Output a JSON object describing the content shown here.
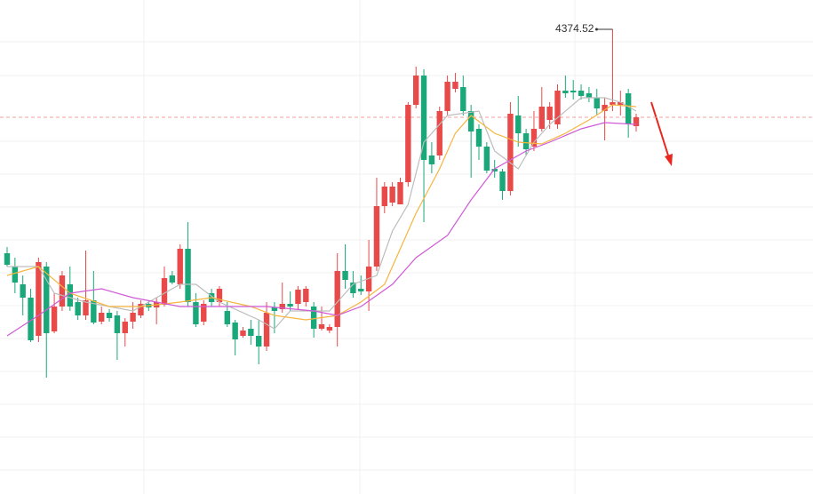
{
  "chart_data": {
    "type": "candlestick",
    "ylim": [
      4113,
      4391
    ],
    "up_color": "#e84a4a",
    "down_color": "#1aa87a",
    "ohlc": [
      [
        4248.5,
        4252,
        4241,
        4242
      ],
      [
        4241,
        4246,
        4226,
        4232
      ],
      [
        4231,
        4236,
        4213.5,
        4223.5
      ],
      [
        4223.5,
        4228.5,
        4198.5,
        4199.5
      ],
      [
        4202,
        4246,
        4198.5,
        4243.5
      ],
      [
        4241,
        4243.5,
        4178.5,
        4203.5
      ],
      [
        4204.5,
        4226,
        4203.5,
        4218.5
      ],
      [
        4218.5,
        4238.5,
        4216,
        4236
      ],
      [
        4231,
        4241,
        4216,
        4218.5
      ],
      [
        4221,
        4223.5,
        4211,
        4213.5
      ],
      [
        4213.5,
        4250,
        4211,
        4222
      ],
      [
        4222,
        4238.5,
        4208.5,
        4209.5
      ],
      [
        4210,
        4218.5,
        4208.5,
        4215
      ],
      [
        4215,
        4217,
        4210,
        4212
      ],
      [
        4213.5,
        4216,
        4188.5,
        4203.5
      ],
      [
        4203.5,
        4212,
        4196,
        4210
      ],
      [
        4210,
        4221,
        4206,
        4215
      ],
      [
        4213.5,
        4222,
        4212,
        4220
      ],
      [
        4220,
        4222,
        4216,
        4218
      ],
      [
        4218,
        4223.5,
        4208.5,
        4221
      ],
      [
        4219.5,
        4241,
        4218.5,
        4234.5
      ],
      [
        4236,
        4238.5,
        4231,
        4232
      ],
      [
        4231,
        4253.5,
        4228.5,
        4251
      ],
      [
        4251,
        4266,
        4218.5,
        4221
      ],
      [
        4221,
        4226,
        4207,
        4208.5
      ],
      [
        4210,
        4222,
        4208,
        4220
      ],
      [
        4226,
        4228.5,
        4218.5,
        4221
      ],
      [
        4221,
        4230,
        4218.5,
        4228.5
      ],
      [
        4216,
        4221,
        4207,
        4208.5
      ],
      [
        4209.5,
        4211,
        4191,
        4200
      ],
      [
        4202,
        4207,
        4201,
        4205
      ],
      [
        4206,
        4211,
        4197,
        4202
      ],
      [
        4202,
        4211,
        4186,
        4196
      ],
      [
        4196,
        4221,
        4193.5,
        4215
      ],
      [
        4218,
        4221,
        4203.5,
        4216
      ],
      [
        4217,
        4232,
        4215,
        4220
      ],
      [
        4220,
        4227,
        4216,
        4218.5
      ],
      [
        4220,
        4230,
        4217,
        4228
      ],
      [
        4221,
        4230,
        4218.5,
        4228.5
      ],
      [
        4218.5,
        4221,
        4201,
        4206
      ],
      [
        4206,
        4218.5,
        4205,
        4208.5
      ],
      [
        4205,
        4208.5,
        4203.5,
        4207
      ],
      [
        4207,
        4248.5,
        4196,
        4238.5
      ],
      [
        4238.5,
        4253.5,
        4228.5,
        4233.5
      ],
      [
        4232,
        4238.5,
        4223.5,
        4226
      ],
      [
        4228.5,
        4236,
        4225,
        4227
      ],
      [
        4227,
        4256,
        4216,
        4241
      ],
      [
        4241,
        4291,
        4238.5,
        4275
      ],
      [
        4275,
        4288.5,
        4271,
        4286
      ],
      [
        4277,
        4288.5,
        4275,
        4286
      ],
      [
        4276,
        4291,
        4276,
        4288.5
      ],
      [
        4288.5,
        4333.5,
        4286,
        4332
      ],
      [
        4332,
        4353.5,
        4330,
        4348.5
      ],
      [
        4348.5,
        4352,
        4266,
        4301
      ],
      [
        4303.5,
        4311,
        4293.5,
        4298.5
      ],
      [
        4303.5,
        4331,
        4301,
        4328.5
      ],
      [
        4328.5,
        4348.5,
        4326,
        4345
      ],
      [
        4341,
        4350,
        4339,
        4345
      ],
      [
        4342,
        4348.5,
        4326,
        4328.5
      ],
      [
        4328.5,
        4332,
        4291,
        4317
      ],
      [
        4318.5,
        4321,
        4301,
        4308.5
      ],
      [
        4308.5,
        4311,
        4293.5,
        4295
      ],
      [
        4296,
        4301,
        4291,
        4294.5
      ],
      [
        4294.5,
        4296,
        4278.5,
        4283.5
      ],
      [
        4283.5,
        4333.5,
        4281,
        4327
      ],
      [
        4326,
        4337,
        4308.5,
        4316
      ],
      [
        4316,
        4318.5,
        4303.5,
        4307
      ],
      [
        4308.5,
        4328.5,
        4306,
        4318.5
      ],
      [
        4318.5,
        4342,
        4317,
        4331
      ],
      [
        4323.5,
        4333.5,
        4318.5,
        4331
      ],
      [
        4321,
        4343.5,
        4318.5,
        4340
      ],
      [
        4340,
        4348.5,
        4336,
        4338.5
      ],
      [
        4340,
        4346,
        4335,
        4339
      ],
      [
        4340,
        4343.5,
        4335,
        4337
      ],
      [
        4338.5,
        4342,
        4333.5,
        4336
      ],
      [
        4336,
        4341,
        4326,
        4330
      ],
      [
        4328.5,
        4336,
        4312,
        4332
      ],
      [
        4332,
        4374.52,
        4328.5,
        4333.5
      ],
      [
        4332,
        4340,
        4326,
        4333.5
      ],
      [
        4338.5,
        4341,
        4313.5,
        4321
      ],
      [
        4320,
        4327,
        4317,
        4325
      ]
    ],
    "lines": [
      {
        "color": "#bdbdbd",
        "x": [
          0,
          4,
          6,
          10,
          16,
          22,
          24,
          27,
          32,
          34,
          36,
          41,
          44,
          47,
          49,
          51,
          53,
          56,
          60,
          62,
          65,
          67,
          69,
          73,
          76,
          78,
          80
        ],
        "values": [
          4241,
          4241,
          4226,
          4221,
          4216,
          4231,
          4231,
          4221,
          4211,
          4206,
          4216,
          4216,
          4231,
          4236,
          4261,
          4276,
          4311,
          4326,
          4328.5,
          4306,
          4296,
          4311,
          4321,
          4336,
          4336,
          4333.5,
          4328.5
        ]
      },
      {
        "color": "#f5b53f",
        "x": [
          0,
          4,
          8,
          13,
          17,
          22,
          26,
          31,
          34,
          38,
          42,
          45,
          48,
          50,
          52,
          55,
          57,
          59,
          62,
          65,
          68,
          71,
          74,
          77,
          80
        ],
        "values": [
          4236,
          4241,
          4226,
          4218.5,
          4218.5,
          4221,
          4223.5,
          4218.5,
          4213.5,
          4211,
          4213.5,
          4221,
          4231,
          4251,
          4271,
          4296,
          4316,
          4326,
          4316,
          4311,
          4310,
          4316,
          4323.5,
          4332,
          4331
        ]
      },
      {
        "color": "#d05ad6",
        "x": [
          0,
          4,
          8,
          12,
          16,
          22,
          27,
          33,
          39,
          42,
          45,
          49,
          52,
          56,
          59,
          62,
          66,
          69,
          73,
          76,
          80
        ],
        "values": [
          4202,
          4213.5,
          4226,
          4228.5,
          4223.5,
          4218.5,
          4218.5,
          4218.5,
          4216,
          4213.5,
          4218.5,
          4231,
          4246,
          4258.5,
          4278.5,
          4296,
          4306,
          4311,
          4318.5,
          4322,
          4321
        ]
      }
    ],
    "reference_line": {
      "value": 4325,
      "color": "#f0a0a0"
    }
  }
}
